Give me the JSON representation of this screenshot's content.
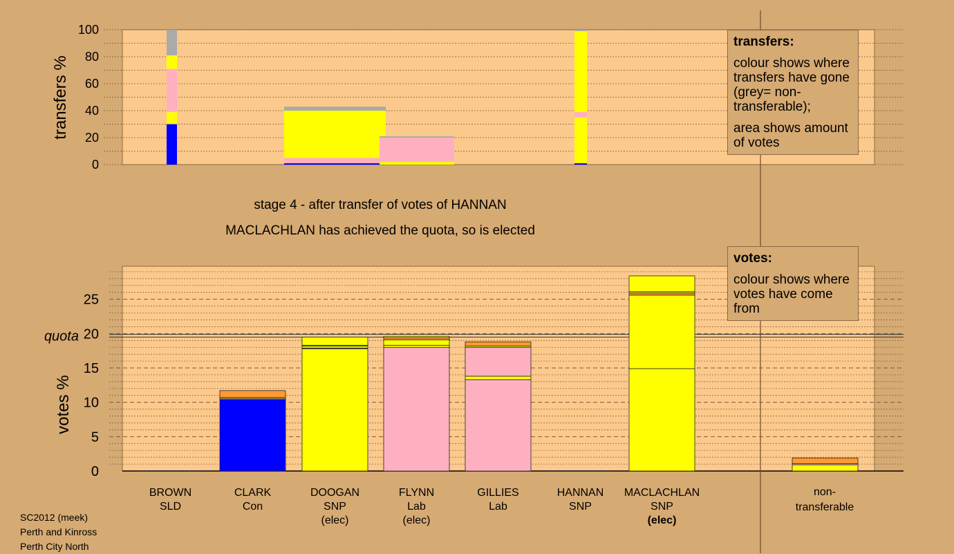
{
  "caption": {
    "stage": "stage 4 - after transfer of votes of HANNAN",
    "elected": "MACLACHLAN has achieved the quota, so is elected"
  },
  "source": [
    "SC2012 (meek)",
    "Perth and Kinross",
    "Perth City North"
  ],
  "legend_transfers": {
    "title": "transfers:",
    "line1": "colour shows where transfers have gone (grey= non-transferable);",
    "line2": "area shows amount of votes"
  },
  "legend_votes": {
    "title": "votes:",
    "line1": "colour shows where votes have come from"
  },
  "colors": {
    "background": "#d6aa73",
    "plot": "#fcc98c",
    "SLD": "#ffff00",
    "Con": "#0000ff",
    "SNP": "#ffff00",
    "Lab": "#ffb0c0",
    "Ind": "#ff9933",
    "nontransferable": "#aaaaaa"
  },
  "chart_data": [
    {
      "type": "bar",
      "subtype": "transfers-stacked",
      "ylabel": "transfers %",
      "ylim": [
        0,
        100
      ],
      "yticks": [
        0,
        20,
        40,
        60,
        80,
        100
      ],
      "columns": [
        {
          "from": "BROWN",
          "segments": [
            {
              "to": "Con",
              "from_pct": 0,
              "to_pct": 30
            },
            {
              "to": "SNP",
              "from_pct": 30,
              "to_pct": 39
            },
            {
              "to": "Lab",
              "from_pct": 39,
              "to_pct": 71
            },
            {
              "to": "SNP",
              "from_pct": 71,
              "to_pct": 81
            },
            {
              "to": "non-transferable",
              "from_pct": 81,
              "to_pct": 100
            }
          ]
        },
        {
          "from": "DOOGAN",
          "segments": [
            {
              "to": "Con",
              "from_pct": 0,
              "to_pct": 1
            },
            {
              "to": "Lab",
              "from_pct": 1,
              "to_pct": 5
            },
            {
              "to": "SNP",
              "from_pct": 5,
              "to_pct": 40
            },
            {
              "to": "non-transferable",
              "from_pct": 40,
              "to_pct": 43
            }
          ]
        },
        {
          "from": "FLYNN",
          "segments": [
            {
              "to": "SNP",
              "from_pct": 0,
              "to_pct": 2
            },
            {
              "to": "Lab",
              "from_pct": 2,
              "to_pct": 20
            },
            {
              "to": "non-transferable",
              "from_pct": 20,
              "to_pct": 21
            }
          ]
        },
        {
          "from": "HANNAN",
          "segments": [
            {
              "to": "Con",
              "from_pct": 0,
              "to_pct": 1
            },
            {
              "to": "SNP",
              "from_pct": 1,
              "to_pct": 35
            },
            {
              "to": "Lab",
              "from_pct": 35,
              "to_pct": 39
            },
            {
              "to": "SNP",
              "from_pct": 39,
              "to_pct": 99
            },
            {
              "to": "non-transferable",
              "from_pct": 99,
              "to_pct": 100
            }
          ]
        }
      ]
    },
    {
      "type": "bar",
      "subtype": "votes-stacked",
      "ylabel": "votes %",
      "ylim": [
        0,
        30
      ],
      "yticks": [
        0,
        5,
        10,
        15,
        20,
        25
      ],
      "quota": 19.7,
      "quota_label": "quota",
      "candidates": [
        {
          "name": "BROWN",
          "party": "SLD",
          "status": "",
          "segments": []
        },
        {
          "name": "CLARK",
          "party": "Con",
          "status": "",
          "segments": [
            {
              "source": "Con",
              "value": 10.4
            },
            {
              "source": "Lab",
              "value": 0.15
            },
            {
              "source": "SNP",
              "value": 0.15
            },
            {
              "source": "Ind",
              "value": 1.0
            }
          ]
        },
        {
          "name": "DOOGAN",
          "party": "SNP",
          "status": "(elec)",
          "segments": [
            {
              "source": "SNP",
              "value": 17.8
            },
            {
              "source": "Con",
              "value": 0.1
            },
            {
              "source": "SNP",
              "value": 0.3
            },
            {
              "source": "Ind",
              "value": 0.1
            },
            {
              "source": "SNP",
              "value": 1.2
            }
          ]
        },
        {
          "name": "FLYNN",
          "party": "Lab",
          "status": "(elec)",
          "segments": [
            {
              "source": "Lab",
              "value": 18.0
            },
            {
              "source": "SNP",
              "value": 0.3
            },
            {
              "source": "SNP",
              "value": 0.8
            },
            {
              "source": "Ind",
              "value": 0.3
            },
            {
              "source": "SNP",
              "value": 0.2
            }
          ]
        },
        {
          "name": "GILLIES",
          "party": "Lab",
          "status": "",
          "segments": [
            {
              "source": "Lab",
              "value": 13.3
            },
            {
              "source": "SNP",
              "value": 0.5
            },
            {
              "source": "Lab",
              "value": 4.2
            },
            {
              "source": "SNP",
              "value": 0.2
            },
            {
              "source": "Ind",
              "value": 0.6
            }
          ]
        },
        {
          "name": "HANNAN",
          "party": "SNP",
          "status": "",
          "segments": []
        },
        {
          "name": "MACLACHLAN",
          "party": "SNP",
          "status": "(elec)",
          "segments": [
            {
              "source": "SNP",
              "value": 14.9
            },
            {
              "source": "SNP",
              "value": 10.7
            },
            {
              "source": "Ind",
              "value": 0.3
            },
            {
              "source": "SNP",
              "value": 0.2
            },
            {
              "source": "SNP",
              "value": 2.3
            }
          ]
        }
      ],
      "nontransferable": {
        "label": "non-transferable",
        "segments": [
          {
            "source": "SNP",
            "value": 0.9
          },
          {
            "source": "Lab",
            "value": 0.15
          },
          {
            "source": "Ind",
            "value": 0.85
          }
        ]
      }
    }
  ]
}
